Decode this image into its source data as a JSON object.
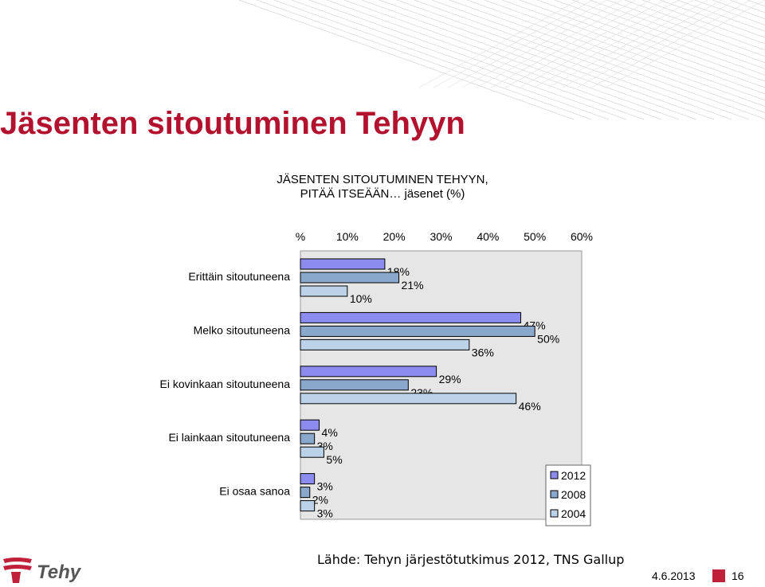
{
  "slide": {
    "title": "Jäsenten sitoutuminen Tehyyn",
    "source": "Lähde: Tehyn järjestötutkimus 2012, TNS Gallup",
    "date": "4.6.2013",
    "page": "16",
    "logo_text": "Tehy",
    "accent_color": "#b3122e"
  },
  "chart_data": {
    "type": "bar",
    "orientation": "horizontal",
    "title_lines": [
      "JÄSENTEN SITOUTUMINEN TEHYYN,",
      "PITÄÄ ITSEÄÄN… jäsenet (%)"
    ],
    "x_ticks": [
      "%",
      "10%",
      "20%",
      "30%",
      "40%",
      "50%",
      "60%"
    ],
    "xlim": [
      0,
      60
    ],
    "grid": false,
    "legend_position": "bottom-right",
    "categories": [
      "Erittäin sitoutuneena",
      "Melko sitoutuneena",
      "Ei kovinkaan sitoutuneena",
      "Ei lainkaan sitoutuneena",
      "Ei osaa sanoa"
    ],
    "series": [
      {
        "name": "2012",
        "color": "#8c8cf0",
        "values": [
          18,
          47,
          29,
          4,
          3
        ],
        "labels": [
          "18%",
          "47%",
          "29%",
          "4%",
          "3%"
        ]
      },
      {
        "name": "2008",
        "color": "#8aa8cc",
        "values": [
          21,
          50,
          23,
          3,
          2
        ],
        "labels": [
          "21%",
          "50%",
          "23%",
          "3%",
          "2%"
        ]
      },
      {
        "name": "2004",
        "color": "#bcd2e8",
        "values": [
          10,
          36,
          46,
          5,
          3
        ],
        "labels": [
          "10%",
          "36%",
          "46%",
          "5%",
          "3%"
        ]
      }
    ]
  }
}
